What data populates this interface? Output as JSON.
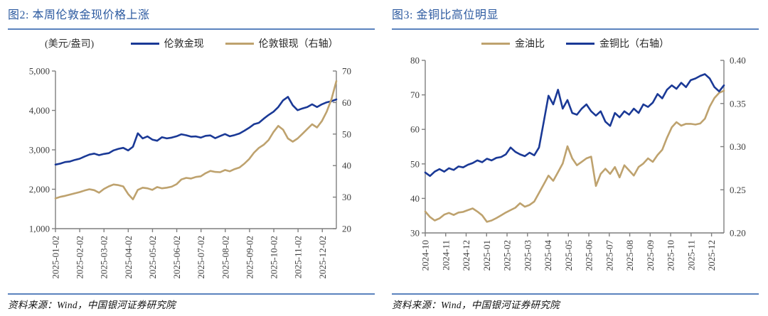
{
  "colors": {
    "title": "#2C5AA0",
    "rule": "#5B83BE",
    "axis": "#7f7f7f",
    "tick_label": "#3f3f3f",
    "gold_blue": "#1A3996",
    "tan": "#BEA26E"
  },
  "chart_data": [
    {
      "type": "line",
      "title": "图2: 本周伦敦金现价格上涨",
      "unit_label": "(美元/盎司)",
      "source": "资料来源：Wind，中国银河证券研究院",
      "legend_position": "top",
      "grid": false,
      "x_tick_labels": [
        "2025-01-02",
        "2025-02-02",
        "2025-03-02",
        "2025-04-02",
        "2025-05-02",
        "2025-06-02",
        "2025-07-02",
        "2025-08-02",
        "2025-09-02",
        "2025-10-02",
        "2025-11-02",
        "2025-12-02"
      ],
      "left_axis": {
        "min": 1000,
        "max": 5000,
        "tick_values": [
          1000,
          2000,
          3000,
          4000,
          5000
        ],
        "tick_labels": [
          "1,000",
          "2,000",
          "3,000",
          "4,000",
          "5,000"
        ]
      },
      "right_axis": {
        "min": 20,
        "max": 70,
        "tick_values": [
          20,
          30,
          40,
          50,
          60,
          70
        ],
        "tick_labels": [
          "20",
          "30",
          "40",
          "50",
          "60",
          "70"
        ]
      },
      "series": [
        {
          "name": "伦敦金现",
          "axis": "left",
          "color": "#1A3996",
          "values": [
            2625,
            2650,
            2690,
            2705,
            2745,
            2775,
            2830,
            2880,
            2905,
            2865,
            2895,
            2915,
            2985,
            3025,
            3050,
            2985,
            3080,
            3420,
            3290,
            3340,
            3260,
            3230,
            3320,
            3290,
            3310,
            3345,
            3395,
            3370,
            3335,
            3340,
            3310,
            3355,
            3365,
            3295,
            3350,
            3400,
            3345,
            3375,
            3415,
            3485,
            3560,
            3650,
            3685,
            3790,
            3885,
            3965,
            4085,
            4255,
            4345,
            4130,
            4005,
            4050,
            4085,
            4155,
            4085,
            4155,
            4205,
            4235,
            4280
          ]
        },
        {
          "name": "伦敦银现（右轴）",
          "axis": "right",
          "color": "#BEA26E",
          "values": [
            29.6,
            30.1,
            30.4,
            30.8,
            31.2,
            31.6,
            32.1,
            32.5,
            32.2,
            31.4,
            32.6,
            33.4,
            34.0,
            33.8,
            33.4,
            31.0,
            29.3,
            32.3,
            33.0,
            32.8,
            32.3,
            33.2,
            32.8,
            33.0,
            33.3,
            34.1,
            35.6,
            36.1,
            35.9,
            36.4,
            36.6,
            37.6,
            38.3,
            38.0,
            37.9,
            38.6,
            38.2,
            38.9,
            39.4,
            40.6,
            42.1,
            44.1,
            45.6,
            46.6,
            48.1,
            50.6,
            52.6,
            51.4,
            48.6,
            47.6,
            48.6,
            50.1,
            51.6,
            53.1,
            52.1,
            54.1,
            57.1,
            61.1,
            66.8
          ]
        }
      ]
    },
    {
      "type": "line",
      "title": "图3: 金铜比高位明显",
      "unit_label": "",
      "source": "资料来源：Wind，中国银河证券研究院",
      "legend_position": "top",
      "grid": false,
      "x_tick_labels": [
        "2024-10",
        "2024-11",
        "2024-12",
        "2025-01",
        "2025-02",
        "2025-03",
        "2025-04",
        "2025-05",
        "2025-06",
        "2025-07",
        "2025-08",
        "2025-09",
        "2025-10",
        "2025-11",
        "2025-12"
      ],
      "left_axis": {
        "min": 30,
        "max": 80,
        "tick_values": [
          30,
          40,
          50,
          60,
          70,
          80
        ],
        "tick_labels": [
          "30",
          "40",
          "50",
          "60",
          "70",
          "80"
        ]
      },
      "right_axis": {
        "min": 0.2,
        "max": 0.4,
        "tick_values": [
          0.2,
          0.25,
          0.3,
          0.35,
          0.4
        ],
        "tick_labels": [
          "0.20",
          "0.25",
          "0.30",
          "0.35",
          "0.40"
        ]
      },
      "series": [
        {
          "name": "金油比",
          "axis": "left",
          "color": "#BEA26E",
          "values": [
            36.2,
            34.6,
            33.6,
            34.2,
            35.3,
            35.8,
            35.2,
            35.9,
            36.1,
            36.6,
            37.1,
            36.2,
            35.1,
            33.2,
            33.6,
            34.3,
            35.1,
            35.9,
            36.6,
            37.3,
            38.6,
            37.6,
            38.1,
            39.1,
            41.6,
            44.1,
            46.6,
            45.1,
            47.6,
            50.1,
            55.1,
            51.6,
            49.6,
            50.6,
            51.6,
            52.1,
            43.6,
            47.1,
            48.6,
            47.1,
            49.1,
            46.1,
            49.6,
            48.1,
            46.6,
            49.1,
            50.1,
            51.6,
            50.6,
            52.6,
            54.1,
            57.6,
            60.6,
            62.1,
            61.1,
            61.6,
            61.6,
            61.4,
            61.7,
            63.1,
            66.6,
            69.1,
            70.6,
            71.2
          ]
        },
        {
          "name": "金铜比（右轴）",
          "axis": "right",
          "color": "#1A3996",
          "values": [
            0.27,
            0.266,
            0.271,
            0.274,
            0.271,
            0.275,
            0.273,
            0.277,
            0.276,
            0.279,
            0.281,
            0.284,
            0.282,
            0.286,
            0.284,
            0.287,
            0.288,
            0.291,
            0.299,
            0.294,
            0.291,
            0.289,
            0.293,
            0.29,
            0.299,
            0.329,
            0.359,
            0.349,
            0.366,
            0.344,
            0.354,
            0.339,
            0.337,
            0.344,
            0.349,
            0.341,
            0.336,
            0.341,
            0.329,
            0.324,
            0.339,
            0.334,
            0.341,
            0.337,
            0.344,
            0.339,
            0.349,
            0.346,
            0.351,
            0.361,
            0.356,
            0.366,
            0.371,
            0.367,
            0.374,
            0.369,
            0.377,
            0.379,
            0.382,
            0.384,
            0.379,
            0.369,
            0.364,
            0.371
          ]
        }
      ]
    }
  ]
}
